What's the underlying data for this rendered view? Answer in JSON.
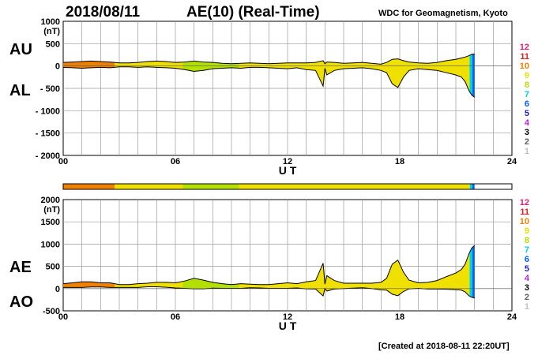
{
  "header": {
    "date": "2018/08/11",
    "title": "AE(10) (Real-Time)",
    "source": "WDC for Geomagnetism, Kyoto"
  },
  "footer": {
    "created": "[Created at 2018-08-11 22:20UT]"
  },
  "legend": {
    "items": [
      {
        "label": "12",
        "color": "#e0207a"
      },
      {
        "label": "11",
        "color": "#e02020"
      },
      {
        "label": "10",
        "color": "#f08000"
      },
      {
        "label": "9",
        "color": "#f0e000"
      },
      {
        "label": "8",
        "color": "#b4e000"
      },
      {
        "label": "7",
        "color": "#00d0e0"
      },
      {
        "label": "6",
        "color": "#0060ff"
      },
      {
        "label": "5",
        "color": "#2020c0"
      },
      {
        "label": "4",
        "color": "#c020e0"
      },
      {
        "label": "3",
        "color": "#000000"
      },
      {
        "label": "2",
        "color": "#606060"
      },
      {
        "label": "1",
        "color": "#c0c0c0"
      }
    ]
  },
  "chart_data": [
    {
      "type": "area",
      "panel": "AU/AL",
      "series_labels": [
        "AU",
        "AL"
      ],
      "ylabel": "(nT)",
      "xlabel": "U T",
      "xlim": [
        0,
        24
      ],
      "ylim": [
        -2000,
        1000
      ],
      "xticks": [
        "00",
        "06",
        "12",
        "18",
        "24"
      ],
      "yticks": [
        "1000",
        "500",
        "0",
        "- 500",
        "- 1000",
        "- 1500",
        "- 2000"
      ],
      "ytick_values": [
        1000,
        500,
        0,
        -500,
        -1000,
        -1500,
        -2000
      ],
      "x": [
        0,
        0.5,
        1,
        1.5,
        2,
        2.5,
        3,
        3.5,
        4,
        4.5,
        5,
        5.5,
        6,
        6.5,
        7,
        7.5,
        8,
        8.5,
        9,
        9.5,
        10,
        10.5,
        11,
        11.5,
        12,
        12.5,
        13,
        13.5,
        13.9,
        14,
        14.1,
        14.5,
        15,
        15.5,
        16,
        16.5,
        17,
        17.3,
        17.6,
        17.9,
        18.2,
        18.5,
        19,
        19.5,
        20,
        20.5,
        21,
        21.3,
        21.5,
        21.7,
        21.85,
        22.0
      ],
      "au": [
        80,
        90,
        100,
        110,
        100,
        90,
        70,
        70,
        80,
        100,
        110,
        100,
        80,
        90,
        110,
        90,
        80,
        60,
        50,
        60,
        70,
        60,
        50,
        60,
        70,
        70,
        70,
        80,
        120,
        50,
        90,
        80,
        60,
        70,
        80,
        60,
        40,
        80,
        150,
        160,
        120,
        90,
        70,
        60,
        80,
        120,
        150,
        180,
        200,
        230,
        260,
        270
      ],
      "al": [
        -30,
        -40,
        -50,
        -40,
        -30,
        -40,
        -20,
        -20,
        -30,
        -20,
        -30,
        -40,
        -50,
        -80,
        -120,
        -100,
        -60,
        -50,
        -40,
        -50,
        -30,
        -30,
        -40,
        -50,
        -60,
        -40,
        -80,
        -100,
        -450,
        -50,
        -200,
        -100,
        -60,
        -50,
        -40,
        -60,
        -100,
        -150,
        -400,
        -480,
        -250,
        -100,
        -60,
        -80,
        -100,
        -150,
        -200,
        -250,
        -350,
        -550,
        -650,
        -700
      ],
      "activity_bar": [
        {
          "start": 0,
          "end": 2.75,
          "color": "#f08000"
        },
        {
          "start": 2.75,
          "end": 6.4,
          "color": "#f0e000"
        },
        {
          "start": 6.4,
          "end": 9.4,
          "color": "#b4e000"
        },
        {
          "start": 9.4,
          "end": 21.75,
          "color": "#f0e000"
        },
        {
          "start": 21.75,
          "end": 21.88,
          "color": "#00d0e0"
        },
        {
          "start": 21.88,
          "end": 22.0,
          "color": "#0060ff"
        }
      ]
    },
    {
      "type": "area",
      "panel": "AE/AO",
      "series_labels": [
        "AE",
        "AO"
      ],
      "ylabel": "(nT)",
      "xlabel": "U T",
      "xlim": [
        0,
        24
      ],
      "ylim": [
        -500,
        2000
      ],
      "xticks": [
        "00",
        "06",
        "12",
        "18",
        "24"
      ],
      "yticks": [
        "2000",
        "1500",
        "1000",
        "500",
        "0",
        "-500"
      ],
      "ytick_values": [
        2000,
        1500,
        1000,
        500,
        0,
        -500
      ],
      "x": [
        0,
        0.5,
        1,
        1.5,
        2,
        2.5,
        3,
        3.5,
        4,
        4.5,
        5,
        5.5,
        6,
        6.5,
        7,
        7.5,
        8,
        8.5,
        9,
        9.5,
        10,
        10.5,
        11,
        11.5,
        12,
        12.5,
        13,
        13.5,
        13.9,
        14,
        14.1,
        14.5,
        15,
        15.5,
        16,
        16.5,
        17,
        17.3,
        17.6,
        17.9,
        18.2,
        18.5,
        19,
        19.5,
        20,
        20.5,
        21,
        21.3,
        21.5,
        21.7,
        21.85,
        22.0
      ],
      "ae": [
        110,
        130,
        150,
        150,
        130,
        130,
        90,
        90,
        110,
        120,
        140,
        140,
        130,
        170,
        230,
        190,
        140,
        110,
        90,
        110,
        100,
        90,
        90,
        110,
        130,
        110,
        150,
        180,
        570,
        100,
        290,
        180,
        120,
        120,
        120,
        120,
        140,
        230,
        550,
        640,
        370,
        190,
        130,
        140,
        180,
        270,
        350,
        430,
        550,
        780,
        910,
        970
      ],
      "ao": [
        25,
        25,
        25,
        35,
        35,
        25,
        25,
        25,
        25,
        40,
        40,
        30,
        15,
        5,
        -5,
        -5,
        10,
        5,
        5,
        5,
        20,
        15,
        5,
        5,
        5,
        15,
        -5,
        -10,
        -165,
        0,
        -55,
        -10,
        0,
        10,
        20,
        0,
        -30,
        -35,
        -125,
        -160,
        -65,
        -5,
        5,
        -10,
        -10,
        -15,
        -25,
        -35,
        -75,
        -160,
        -195,
        -215
      ]
    }
  ]
}
